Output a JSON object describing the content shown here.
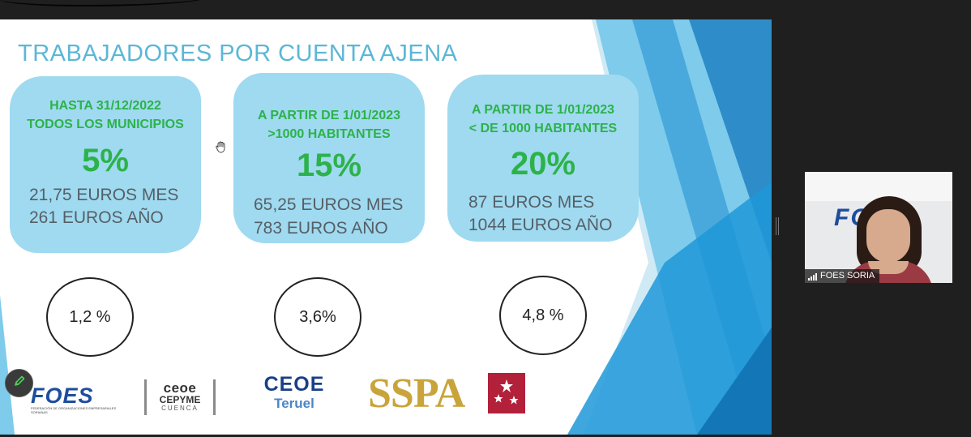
{
  "slide": {
    "title": "TRABAJADORES POR CUENTA AJENA",
    "cards": [
      {
        "heading": "HASTA 31/12/2022\nTODOS LOS MUNICIPIOS",
        "percent": "5%",
        "amount_month": "21,75 EUROS MES",
        "amount_year": "261 EUROS AÑO",
        "circle_value": "1,2 %"
      },
      {
        "heading": "A PARTIR DE 1/01/2023\n>1000 HABITANTES",
        "percent": "15%",
        "amount_month": "65,25 EUROS MES",
        "amount_year": "783 EUROS AÑO",
        "circle_value": "3,6%"
      },
      {
        "heading": "A PARTIR DE 1/01/2023\n< DE 1000 HABITANTES",
        "percent": "20%",
        "amount_month": "87 EUROS MES",
        "amount_year": "1044 EUROS AÑO",
        "circle_value": "4,8 %"
      }
    ],
    "logos": {
      "foes": "FOES",
      "foes_sub": "FEDERACIÓN DE ORGANIZACIONES EMPRESARIALES SORIANAS",
      "cepyme_top": "ceoe",
      "cepyme_mid": "CEPYME",
      "cepyme_bottom": "CUENCA",
      "ceoe_top": "CEOE",
      "ceoe_bottom": "Teruel",
      "sspa": "SSPA"
    }
  },
  "participant": {
    "name": "FOES SORIA",
    "background_logo": "FOES"
  },
  "icons": {
    "annotate": "pencil-icon",
    "cursor": "hand-cursor-icon",
    "signal": "signal-bars-icon"
  },
  "colors": {
    "accent_blue": "#5bb7d6",
    "card_fill": "#9fdaf0",
    "highlight_green": "#2db24a",
    "app_background": "#1f1f1f"
  }
}
